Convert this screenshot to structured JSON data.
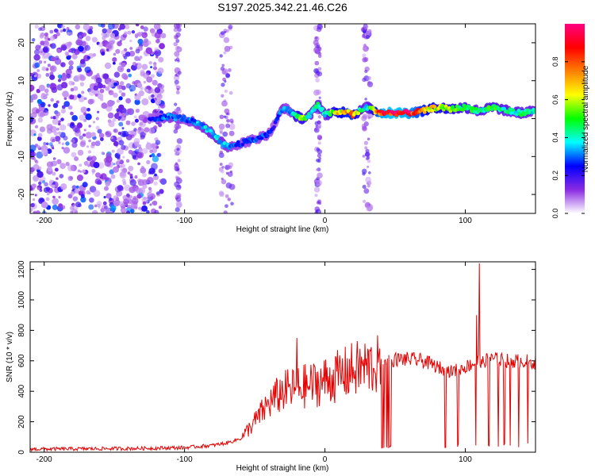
{
  "title": "S197.2025.342.21.46.C26",
  "chart_data": [
    {
      "type": "heatmap",
      "xlabel": "Height of straight line (km)",
      "ylabel": "Frequency (Hz)",
      "xlim": [
        -210,
        150
      ],
      "ylim": [
        -25,
        25
      ],
      "xticks": [
        -200,
        -100,
        0,
        100
      ],
      "yticks": [
        -20,
        -10,
        0,
        10,
        20
      ],
      "colorbar": {
        "label": "Normalized spectral amplitude",
        "range": [
          0,
          1
        ],
        "ticks": [
          0.0,
          0.2,
          0.4,
          0.6,
          0.8
        ],
        "colormap": [
          "#ffffff",
          "#8a2be2",
          "#0000ff",
          "#00ffff",
          "#00ff00",
          "#ffff00",
          "#ff8000",
          "#ff0000",
          "#ff0080"
        ]
      },
      "ridge": {
        "x": [
          -125,
          -110,
          -100,
          -90,
          -80,
          -70,
          -60,
          -50,
          -40,
          -35,
          -30,
          -25,
          -20,
          -15,
          -10,
          -5,
          0,
          5,
          10,
          15,
          20,
          25,
          30,
          40,
          50,
          60,
          70,
          80,
          90,
          100,
          110,
          120,
          130,
          140,
          150
        ],
        "y": [
          0,
          0.5,
          0,
          -1.5,
          -4,
          -7.5,
          -6.5,
          -5.5,
          -4,
          -1,
          3,
          2,
          0.5,
          0,
          1,
          4,
          1,
          1.5,
          1.5,
          2,
          1,
          2,
          3,
          1.5,
          1.5,
          1.5,
          2,
          3,
          2.5,
          3,
          2,
          3,
          2,
          1.5,
          2
        ],
        "amplitude": [
          0.25,
          0.35,
          0.3,
          0.35,
          0.4,
          0.35,
          0.3,
          0.3,
          0.3,
          0.25,
          0.35,
          0.3,
          0.6,
          0.55,
          0.4,
          0.45,
          0.4,
          0.6,
          0.7,
          0.75,
          0.8,
          0.5,
          0.4,
          0.95,
          1.0,
          0.95,
          0.75,
          0.65,
          0.6,
          0.5,
          0.45,
          0.5,
          0.45,
          0.45,
          0.4
        ]
      }
    },
    {
      "type": "line",
      "xlabel": "Height of straight line (km)",
      "ylabel": "SNR (10 * v/v)",
      "xlim": [
        -210,
        150
      ],
      "ylim": [
        0,
        1250
      ],
      "xticks": [
        -200,
        -100,
        0,
        100
      ],
      "yticks": [
        0,
        200,
        400,
        600,
        800,
        1000,
        1200
      ],
      "color": "#e60000",
      "trend": {
        "x": [
          -210,
          -130,
          -100,
          -80,
          -70,
          -60,
          -50,
          -40,
          -30,
          -20,
          -10,
          0,
          10,
          20,
          30,
          40,
          45,
          50,
          60,
          70,
          80,
          90,
          100,
          110,
          120,
          130,
          140,
          150
        ],
        "y": [
          20,
          25,
          30,
          45,
          60,
          90,
          200,
          320,
          400,
          420,
          440,
          470,
          500,
          540,
          560,
          575,
          600,
          610,
          610,
          600,
          560,
          530,
          560,
          600,
          610,
          600,
          600,
          590
        ]
      },
      "peaks": [
        {
          "x": -20,
          "y": 750
        },
        {
          "x": 110,
          "y": 1240
        },
        {
          "x": 108,
          "y": 900
        }
      ],
      "dropouts": [
        40,
        41,
        42,
        43,
        44,
        45,
        46,
        47,
        48,
        80,
        86,
        95,
        108,
        112,
        117,
        124,
        128,
        132,
        138,
        145
      ]
    }
  ]
}
